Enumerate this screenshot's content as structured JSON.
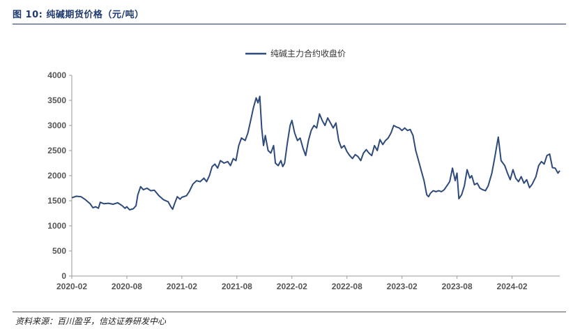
{
  "header": {
    "figure_title": "图 10:  纯碱期货价格（元/吨）"
  },
  "footer": {
    "source": "资料来源：百川盈孚，信达证券研发中心"
  },
  "chart_data": {
    "type": "line",
    "title": "",
    "xlabel": "",
    "ylabel": "",
    "ylim": [
      0,
      4000
    ],
    "yticks": [
      0,
      500,
      1000,
      1500,
      2000,
      2500,
      3000,
      3500,
      4000
    ],
    "xlim": [
      0,
      53.2
    ],
    "xticks": [
      {
        "label": "2020-02",
        "t": 0
      },
      {
        "label": "2020-08",
        "t": 6
      },
      {
        "label": "2021-02",
        "t": 12
      },
      {
        "label": "2021-08",
        "t": 18
      },
      {
        "label": "2022-02",
        "t": 24
      },
      {
        "label": "2022-08",
        "t": 30
      },
      {
        "label": "2023-02",
        "t": 36
      },
      {
        "label": "2023-08",
        "t": 42
      },
      {
        "label": "2024-02",
        "t": 48
      }
    ],
    "x_unit": "months since 2020-02",
    "legend": {
      "position": "top-center",
      "entries": [
        "纯碱主力合约收盘价"
      ]
    },
    "color": "#2e4a7a",
    "series": [
      {
        "name": "纯碱主力合约收盘价",
        "points": [
          [
            0.0,
            1560
          ],
          [
            0.5,
            1590
          ],
          [
            1.0,
            1580
          ],
          [
            1.5,
            1520
          ],
          [
            2.0,
            1440
          ],
          [
            2.3,
            1360
          ],
          [
            2.6,
            1380
          ],
          [
            2.9,
            1350
          ],
          [
            3.1,
            1470
          ],
          [
            3.5,
            1440
          ],
          [
            4.0,
            1450
          ],
          [
            4.5,
            1430
          ],
          [
            5.0,
            1460
          ],
          [
            5.5,
            1400
          ],
          [
            5.8,
            1350
          ],
          [
            6.0,
            1380
          ],
          [
            6.3,
            1320
          ],
          [
            6.7,
            1340
          ],
          [
            7.0,
            1400
          ],
          [
            7.2,
            1620
          ],
          [
            7.5,
            1780
          ],
          [
            7.8,
            1720
          ],
          [
            8.2,
            1750
          ],
          [
            8.6,
            1700
          ],
          [
            9.0,
            1710
          ],
          [
            9.5,
            1600
          ],
          [
            10.0,
            1520
          ],
          [
            10.5,
            1480
          ],
          [
            10.8,
            1380
          ],
          [
            11.0,
            1330
          ],
          [
            11.2,
            1440
          ],
          [
            11.5,
            1580
          ],
          [
            11.8,
            1530
          ],
          [
            12.0,
            1570
          ],
          [
            12.5,
            1600
          ],
          [
            12.8,
            1680
          ],
          [
            13.2,
            1830
          ],
          [
            13.6,
            1900
          ],
          [
            14.0,
            1880
          ],
          [
            14.4,
            1950
          ],
          [
            14.7,
            1880
          ],
          [
            15.0,
            2000
          ],
          [
            15.3,
            2180
          ],
          [
            15.6,
            2230
          ],
          [
            15.9,
            2150
          ],
          [
            16.2,
            2300
          ],
          [
            16.6,
            2250
          ],
          [
            17.0,
            2280
          ],
          [
            17.3,
            2200
          ],
          [
            17.6,
            2340
          ],
          [
            17.9,
            2300
          ],
          [
            18.2,
            2600
          ],
          [
            18.5,
            2750
          ],
          [
            18.9,
            2700
          ],
          [
            19.2,
            2850
          ],
          [
            19.5,
            3100
          ],
          [
            19.8,
            3350
          ],
          [
            20.1,
            3550
          ],
          [
            20.3,
            3450
          ],
          [
            20.5,
            3580
          ],
          [
            20.7,
            2950
          ],
          [
            20.9,
            2600
          ],
          [
            21.1,
            2800
          ],
          [
            21.4,
            2500
          ],
          [
            21.7,
            2450
          ],
          [
            22.0,
            2600
          ],
          [
            22.2,
            2250
          ],
          [
            22.5,
            2200
          ],
          [
            22.8,
            2300
          ],
          [
            23.0,
            2180
          ],
          [
            23.2,
            2250
          ],
          [
            23.5,
            2650
          ],
          [
            23.8,
            3000
          ],
          [
            24.0,
            3100
          ],
          [
            24.3,
            2850
          ],
          [
            24.6,
            2700
          ],
          [
            24.9,
            2750
          ],
          [
            25.2,
            2550
          ],
          [
            25.5,
            2400
          ],
          [
            25.8,
            2700
          ],
          [
            26.1,
            2900
          ],
          [
            26.4,
            3000
          ],
          [
            26.7,
            2950
          ],
          [
            27.0,
            3230
          ],
          [
            27.3,
            3100
          ],
          [
            27.6,
            3000
          ],
          [
            27.9,
            3150
          ],
          [
            28.2,
            3050
          ],
          [
            28.5,
            2950
          ],
          [
            28.8,
            3050
          ],
          [
            29.1,
            2700
          ],
          [
            29.4,
            2550
          ],
          [
            29.7,
            2600
          ],
          [
            30.0,
            2480
          ],
          [
            30.3,
            2400
          ],
          [
            30.6,
            2340
          ],
          [
            30.9,
            2420
          ],
          [
            31.2,
            2380
          ],
          [
            31.5,
            2300
          ],
          [
            31.8,
            2450
          ],
          [
            32.1,
            2520
          ],
          [
            32.4,
            2450
          ],
          [
            32.7,
            2400
          ],
          [
            33.0,
            2600
          ],
          [
            33.3,
            2500
          ],
          [
            33.6,
            2720
          ],
          [
            33.9,
            2620
          ],
          [
            34.2,
            2700
          ],
          [
            34.5,
            2750
          ],
          [
            34.8,
            2850
          ],
          [
            35.1,
            3000
          ],
          [
            35.4,
            2970
          ],
          [
            35.7,
            2950
          ],
          [
            36.0,
            2900
          ],
          [
            36.3,
            2950
          ],
          [
            36.6,
            2900
          ],
          [
            36.9,
            2920
          ],
          [
            37.2,
            2800
          ],
          [
            37.5,
            2500
          ],
          [
            37.8,
            2300
          ],
          [
            38.1,
            2100
          ],
          [
            38.4,
            1900
          ],
          [
            38.7,
            1620
          ],
          [
            38.9,
            1580
          ],
          [
            39.1,
            1650
          ],
          [
            39.4,
            1700
          ],
          [
            39.7,
            1680
          ],
          [
            40.0,
            1700
          ],
          [
            40.3,
            1680
          ],
          [
            40.6,
            1720
          ],
          [
            40.9,
            1800
          ],
          [
            41.2,
            1880
          ],
          [
            41.5,
            2150
          ],
          [
            41.8,
            1900
          ],
          [
            42.0,
            2050
          ],
          [
            42.2,
            1540
          ],
          [
            42.5,
            1620
          ],
          [
            42.8,
            1800
          ],
          [
            43.1,
            2120
          ],
          [
            43.4,
            1950
          ],
          [
            43.6,
            2000
          ],
          [
            43.9,
            1820
          ],
          [
            44.2,
            1850
          ],
          [
            44.5,
            1750
          ],
          [
            44.8,
            1720
          ],
          [
            45.1,
            1700
          ],
          [
            45.4,
            1800
          ],
          [
            45.8,
            2050
          ],
          [
            46.1,
            2350
          ],
          [
            46.5,
            2770
          ],
          [
            46.8,
            2300
          ],
          [
            47.2,
            2200
          ],
          [
            47.5,
            2050
          ],
          [
            47.8,
            1920
          ],
          [
            48.1,
            2120
          ],
          [
            48.4,
            1950
          ],
          [
            48.7,
            1880
          ],
          [
            49.0,
            1980
          ],
          [
            49.3,
            1850
          ],
          [
            49.6,
            1920
          ],
          [
            49.9,
            1760
          ],
          [
            50.2,
            1830
          ],
          [
            50.6,
            1980
          ],
          [
            50.9,
            2200
          ],
          [
            51.2,
            2280
          ],
          [
            51.5,
            2230
          ],
          [
            51.8,
            2400
          ],
          [
            52.1,
            2430
          ],
          [
            52.4,
            2160
          ],
          [
            52.7,
            2150
          ],
          [
            53.0,
            2050
          ],
          [
            53.2,
            2100
          ]
        ]
      }
    ]
  }
}
